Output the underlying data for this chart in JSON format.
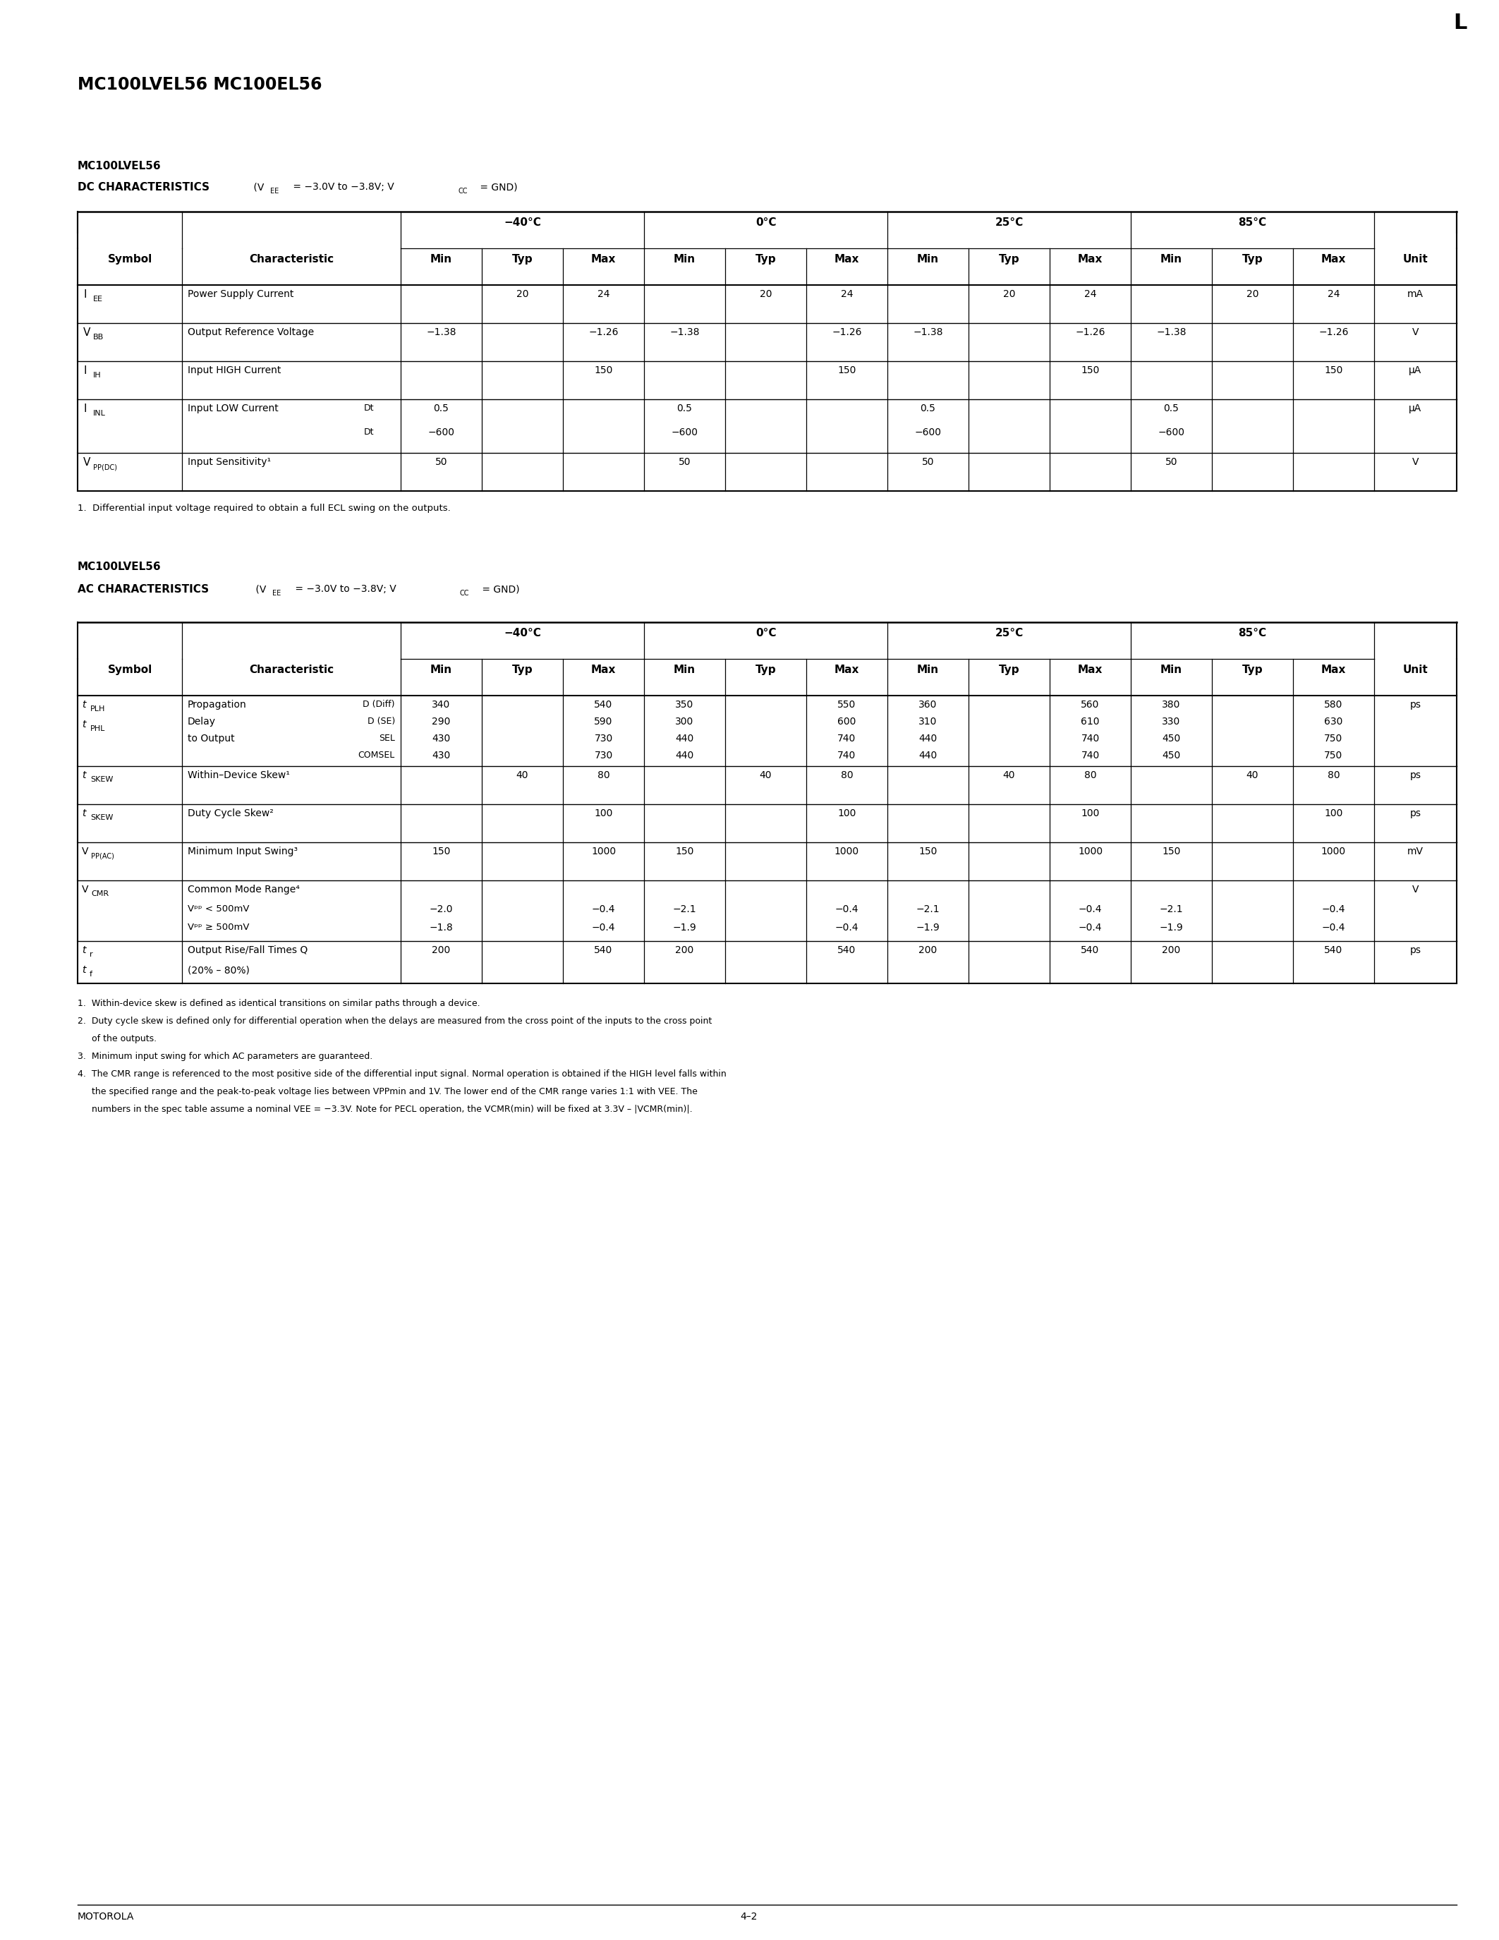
{
  "page_title": "MC100LVEL56 MC100EL56",
  "corner_mark": "L",
  "footer_left": "MOTOROLA",
  "footer_center": "4–2"
}
